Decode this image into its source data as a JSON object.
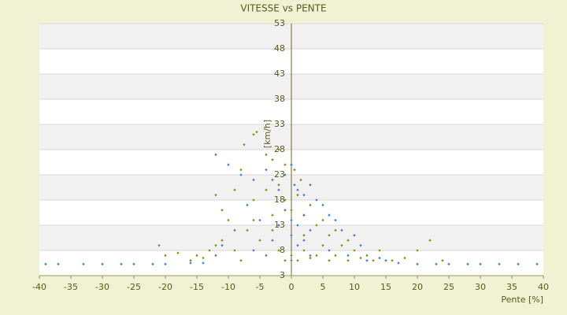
{
  "chart_data": {
    "type": "scatter",
    "title": "VITESSE vs PENTE",
    "x_label": "Pente [%]",
    "y_label": "[km/h]",
    "xlim": [
      -40,
      40
    ],
    "xticks": [
      -40,
      -35,
      -30,
      -25,
      -20,
      -15,
      -10,
      -5,
      0,
      5,
      10,
      15,
      20,
      25,
      30,
      35,
      40
    ],
    "ylim": [
      3,
      53
    ],
    "yticks": [
      3,
      8,
      13,
      18,
      23,
      28,
      33,
      38,
      43,
      48,
      53
    ],
    "grid": true,
    "series": [
      {
        "color": "#8c9a1c",
        "x": [
          -5.5,
          -6,
          -7.5,
          -4,
          -3,
          -2,
          -1,
          0.5,
          1.5,
          -8,
          -9,
          -6,
          -4,
          -2,
          -1,
          0,
          1,
          2,
          3,
          4,
          5,
          6,
          7,
          8,
          9,
          10,
          -10,
          -11,
          -12,
          -13,
          -15,
          -18,
          -21,
          -20,
          -16,
          -14,
          -7,
          -5,
          -3,
          -2,
          -1,
          0,
          1,
          2,
          3,
          4,
          5,
          6,
          7,
          9,
          11,
          12,
          13,
          14,
          16,
          18,
          20,
          22,
          24,
          -8,
          -9,
          -6,
          2,
          -3,
          -11,
          -12
        ],
        "values": [
          31.5,
          31,
          29,
          27,
          26,
          28,
          25,
          24,
          22,
          24,
          20,
          18,
          20,
          21,
          18,
          16,
          19,
          15,
          17,
          13,
          14,
          11,
          12,
          9,
          10,
          8,
          14,
          10,
          9,
          8,
          7,
          7.5,
          9,
          7,
          6,
          6.5,
          12,
          10,
          12,
          8,
          6,
          7,
          6,
          8,
          6.5,
          7,
          9,
          6,
          7,
          6,
          6.5,
          7,
          6,
          8,
          6,
          6.5,
          8,
          10,
          6,
          6,
          8,
          14,
          11,
          15,
          16,
          19
        ]
      },
      {
        "color": "#3d8fd6",
        "x": [
          -12,
          -10,
          -8,
          -6,
          -4,
          -3,
          -2,
          -1,
          0,
          0.5,
          1,
          2,
          3,
          4,
          5,
          6,
          7,
          8,
          10,
          11,
          -1,
          0,
          1,
          2,
          3,
          0,
          1,
          2,
          -2,
          -3,
          -5,
          -7,
          -9,
          -11,
          -12,
          -6,
          -4,
          0,
          3,
          6,
          9,
          12,
          14,
          15,
          17,
          -14,
          -16,
          -20,
          -22,
          -25,
          -27,
          -30,
          -33,
          -37,
          -39,
          20,
          23,
          25,
          28,
          30,
          33,
          36,
          39
        ],
        "values": [
          27,
          25,
          23,
          22,
          24,
          22,
          20,
          23,
          25,
          21,
          20,
          19,
          21,
          18,
          17,
          15,
          14,
          12,
          11,
          9,
          16,
          14,
          13,
          15,
          12,
          11,
          9,
          10,
          13,
          10,
          14,
          17,
          12,
          9,
          7,
          8,
          7,
          6,
          7,
          8,
          7,
          6,
          6.5,
          6,
          5.5,
          5.5,
          5.5,
          5.3,
          5.3,
          5.3,
          5.3,
          5.3,
          5.3,
          5.3,
          5.3,
          5.3,
          5.3,
          5.3,
          5.3,
          5.3,
          5.3,
          5.3,
          5.3
        ]
      }
    ]
  }
}
